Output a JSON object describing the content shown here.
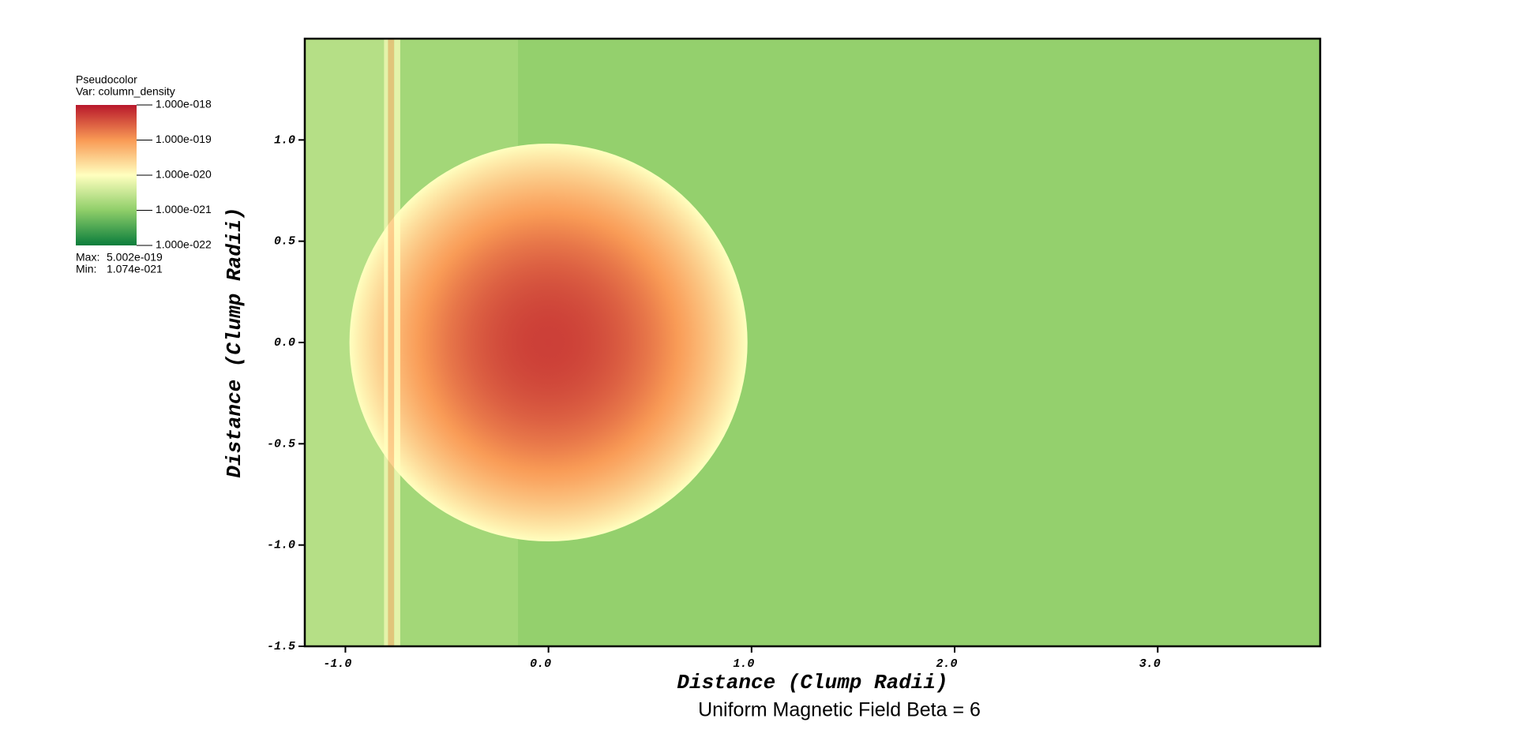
{
  "chart_data": {
    "type": "pseudocolor",
    "subtitle": "Uniform Magnetic Field Beta = 6",
    "x_label": "Distance (Clump Radii)",
    "y_label": "Distance (Clump Radii)",
    "xlim": [
      -1.2,
      3.8
    ],
    "ylim": [
      -1.5,
      1.5
    ],
    "xticks": [
      {
        "value": -1,
        "label": "-1.0"
      },
      {
        "value": 0,
        "label": "0.0"
      },
      {
        "value": 1,
        "label": "1.0"
      },
      {
        "value": 2,
        "label": "2.0"
      },
      {
        "value": 3,
        "label": "3.0"
      }
    ],
    "yticks": [
      {
        "value": -1.5,
        "label": "-1.5"
      },
      {
        "value": -1,
        "label": "-1.0"
      },
      {
        "value": -0.5,
        "label": "-0.5"
      },
      {
        "value": 0,
        "label": "0.0"
      },
      {
        "value": 0.5,
        "label": "0.5"
      },
      {
        "value": 1,
        "label": "1.0"
      }
    ],
    "legend": {
      "title": "Pseudocolor",
      "variable": "Var: column_density",
      "log_scale": true,
      "ticks": [
        {
          "value": 1e-18,
          "label": "1.000e-018"
        },
        {
          "value": 1e-19,
          "label": "1.000e-019"
        },
        {
          "value": 1e-20,
          "label": "1.000e-020"
        },
        {
          "value": 1e-21,
          "label": "1.000e-021"
        },
        {
          "value": 1e-22,
          "label": "1.000e-022"
        }
      ],
      "colors": [
        "#b8182b",
        "#f99a55",
        "#ffffbf",
        "#8fce69",
        "#0a7d3c"
      ],
      "max_label": "Max:",
      "max": {
        "value": 5.002e-19,
        "label": "5.002e-019"
      },
      "min_label": "Min:",
      "min": {
        "value": 1.074e-21,
        "label": "1.074e-021"
      }
    },
    "field": {
      "background": 1.1e-21,
      "bands": [
        {
          "x": [
            -1.2,
            -0.81
          ],
          "value": 2.2e-21
        },
        {
          "x": [
            -0.73,
            -0.15
          ],
          "value": 1.5e-21
        },
        {
          "x": [
            -0.81,
            -0.79
          ],
          "value": 1e-20
        },
        {
          "x": [
            -0.79,
            -0.76
          ],
          "value": 4e-20
        },
        {
          "x": [
            -0.76,
            -0.73
          ],
          "value": 1e-20
        }
      ],
      "clump": {
        "center": [
          0,
          0
        ],
        "radius": 0.98,
        "peak": 5.002e-19,
        "edge": 1e-20
      }
    }
  }
}
